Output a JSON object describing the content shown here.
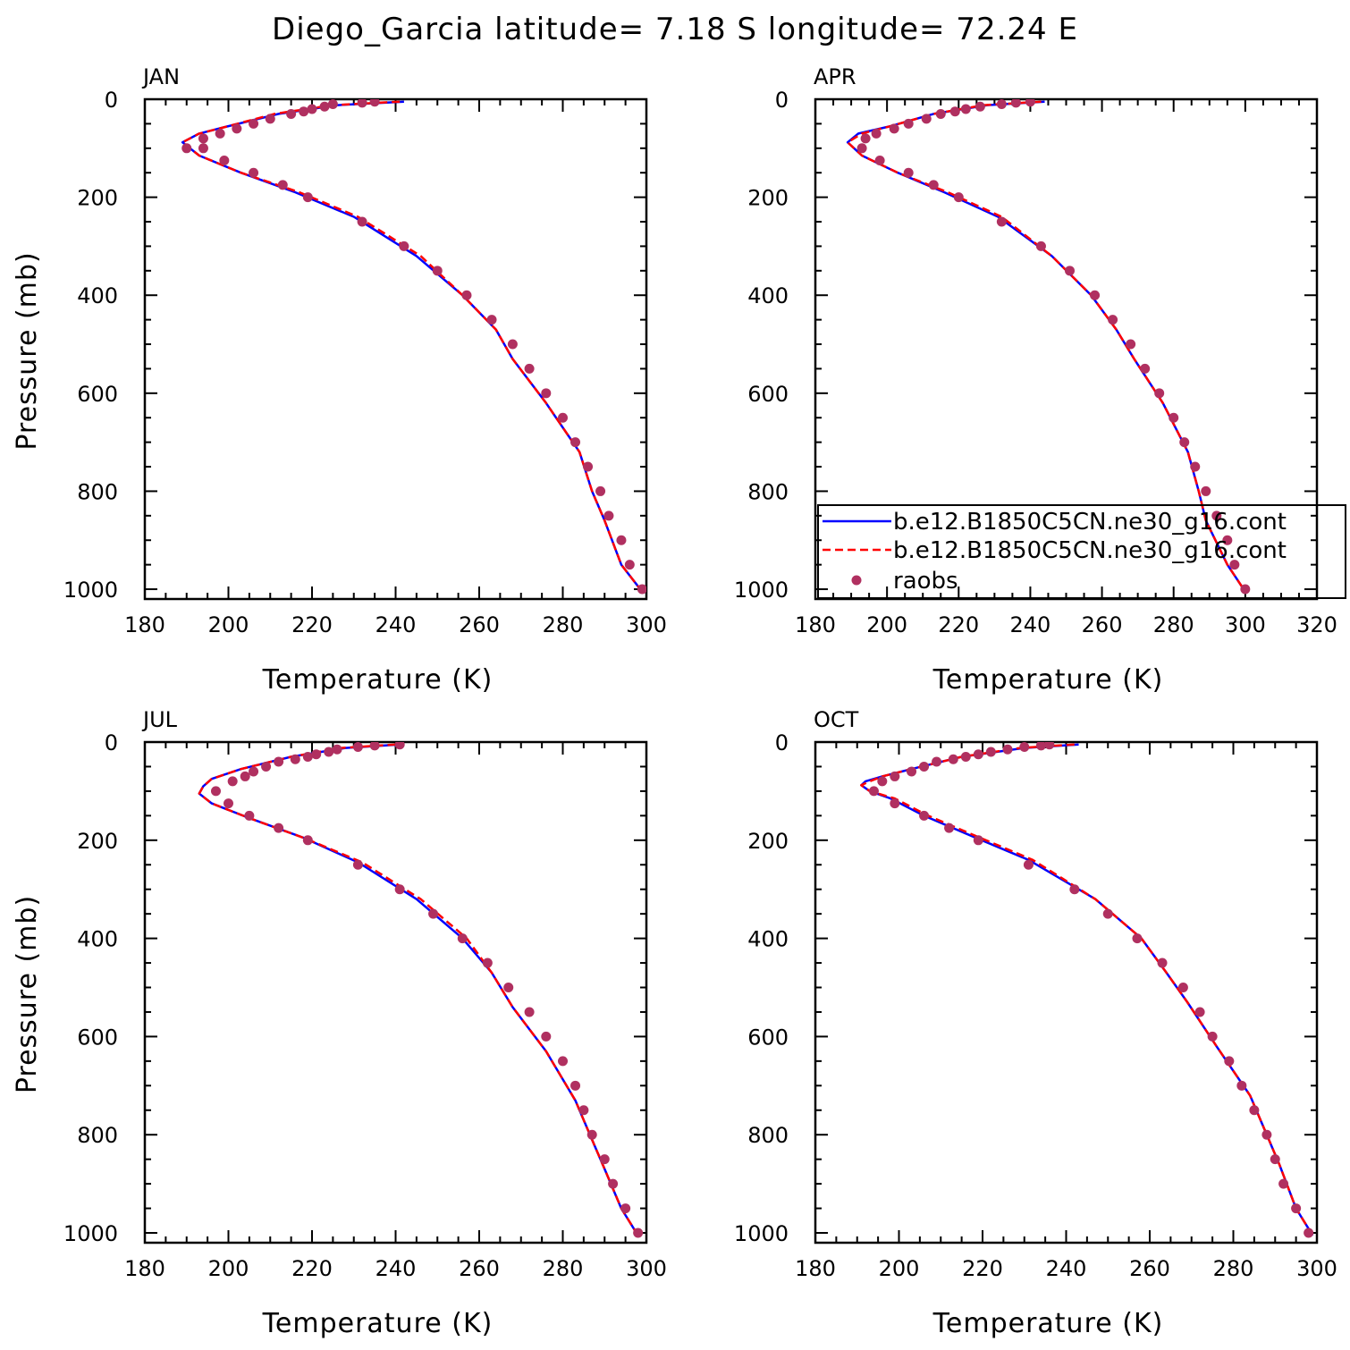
{
  "figure": {
    "title": "Diego_Garcia  latitude= 7.18 S longitude= 72.24 E"
  },
  "chart_data": [
    {
      "type": "line",
      "panel": "JAN",
      "title": "JAN",
      "xlabel": "Temperature (K)",
      "ylabel": "Pressure (mb)",
      "xlim": [
        180,
        300
      ],
      "ylim": [
        1020,
        0
      ],
      "xticks": [
        180,
        200,
        220,
        240,
        260,
        280,
        300
      ],
      "yticks": [
        0,
        200,
        400,
        600,
        800,
        1000
      ],
      "grid": false,
      "series": [
        {
          "name": "b.e12.B1850C5CN.ne30_g16.cont",
          "style": "solid",
          "color": "#0000ff",
          "x": [
            242,
            226,
            212,
            200,
            193,
            189,
            193,
            203,
            216,
            230,
            245,
            256,
            264,
            268,
            276,
            284,
            287,
            290,
            294,
            299
          ],
          "y": [
            5,
            12,
            30,
            55,
            70,
            88,
            115,
            150,
            190,
            240,
            320,
            400,
            470,
            530,
            620,
            720,
            800,
            860,
            950,
            1005
          ]
        },
        {
          "name": "b.e12.B1850C5CN.ne30_g16.cont",
          "style": "dashed",
          "color": "#ff0000",
          "x": [
            241,
            225,
            211,
            200,
            193,
            189,
            193,
            203,
            217,
            231,
            246,
            256,
            264,
            268,
            276,
            284,
            287,
            290,
            294,
            299
          ],
          "y": [
            5,
            12,
            30,
            55,
            70,
            88,
            115,
            150,
            190,
            240,
            320,
            400,
            470,
            530,
            620,
            720,
            800,
            860,
            950,
            1005
          ]
        },
        {
          "name": "raobs",
          "style": "markers",
          "color": "#b03060",
          "x": [
            235,
            232,
            225,
            223,
            220,
            218,
            215,
            210,
            206,
            202,
            198,
            194,
            190,
            194,
            199,
            206,
            213,
            219,
            232,
            242,
            250,
            257,
            263,
            268,
            272,
            276,
            280,
            283,
            286,
            289,
            291,
            294,
            296,
            299
          ],
          "y": [
            5,
            7,
            10,
            15,
            20,
            25,
            30,
            40,
            50,
            60,
            70,
            80,
            100,
            100,
            125,
            150,
            175,
            200,
            250,
            300,
            350,
            400,
            450,
            500,
            550,
            600,
            650,
            700,
            750,
            800,
            850,
            900,
            950,
            1000
          ]
        }
      ]
    },
    {
      "type": "line",
      "panel": "APR",
      "title": "APR",
      "xlabel": "Temperature (K)",
      "ylabel": "",
      "xlim": [
        180,
        320
      ],
      "ylim": [
        1020,
        0
      ],
      "xticks": [
        180,
        200,
        220,
        240,
        260,
        280,
        300,
        320
      ],
      "yticks": [
        0,
        200,
        400,
        600,
        800,
        1000
      ],
      "grid": false,
      "legend": {
        "placement": "bottom-right",
        "entries": [
          "b.e12.B1850C5CN.ne30_g16.cont",
          "b.e12.B1850C5CN.ne30_g16.cont",
          "raobs"
        ]
      },
      "series": [
        {
          "name": "b.e12.B1850C5CN.ne30_g16.cont",
          "style": "solid",
          "color": "#0000ff",
          "x": [
            244,
            228,
            213,
            201,
            192,
            189,
            193,
            203,
            216,
            231,
            246,
            257,
            264,
            269,
            277,
            284,
            287,
            289,
            295,
            300
          ],
          "y": [
            5,
            12,
            30,
            55,
            70,
            88,
            115,
            150,
            190,
            240,
            320,
            400,
            470,
            530,
            620,
            720,
            800,
            860,
            950,
            1005
          ]
        },
        {
          "name": "b.e12.B1850C5CN.ne30_g16.cont",
          "style": "dashed",
          "color": "#ff0000",
          "x": [
            243,
            227,
            213,
            201,
            193,
            189,
            193,
            203,
            217,
            232,
            246,
            257,
            264,
            269,
            277,
            284,
            287,
            289,
            295,
            300
          ],
          "y": [
            5,
            12,
            30,
            55,
            70,
            88,
            115,
            150,
            190,
            240,
            320,
            400,
            470,
            530,
            620,
            720,
            800,
            860,
            950,
            1005
          ]
        },
        {
          "name": "raobs",
          "style": "markers",
          "color": "#b03060",
          "x": [
            240,
            236,
            232,
            226,
            222,
            219,
            215,
            211,
            206,
            202,
            197,
            194,
            193,
            198,
            206,
            213,
            220,
            232,
            243,
            251,
            258,
            263,
            268,
            272,
            276,
            280,
            283,
            286,
            289,
            292,
            295,
            297,
            300
          ],
          "y": [
            5,
            7,
            10,
            15,
            20,
            25,
            30,
            40,
            50,
            60,
            70,
            80,
            100,
            125,
            150,
            175,
            200,
            250,
            300,
            350,
            400,
            450,
            500,
            550,
            600,
            650,
            700,
            750,
            800,
            850,
            900,
            950,
            1000
          ]
        }
      ]
    },
    {
      "type": "line",
      "panel": "JUL",
      "title": "JUL",
      "xlabel": "Temperature (K)",
      "ylabel": "Pressure (mb)",
      "xlim": [
        180,
        300
      ],
      "ylim": [
        1020,
        0
      ],
      "xticks": [
        180,
        200,
        220,
        240,
        260,
        280,
        300
      ],
      "yticks": [
        0,
        200,
        400,
        600,
        800,
        1000
      ],
      "grid": false,
      "series": [
        {
          "name": "b.e12.B1850C5CN.ne30_g16.cont",
          "style": "solid",
          "color": "#0000ff",
          "x": [
            241,
            228,
            215,
            203,
            196,
            194,
            193,
            196,
            205,
            218,
            231,
            245,
            256,
            263,
            268,
            276,
            283,
            287,
            290,
            294,
            298
          ],
          "y": [
            5,
            12,
            30,
            55,
            75,
            90,
            105,
            125,
            155,
            195,
            245,
            320,
            400,
            470,
            540,
            630,
            730,
            810,
            870,
            950,
            1005
          ]
        },
        {
          "name": "b.e12.B1850C5CN.ne30_g16.cont",
          "style": "dashed",
          "color": "#ff0000",
          "x": [
            240,
            227,
            215,
            203,
            196,
            194,
            193,
            196,
            205,
            218,
            232,
            246,
            257,
            263,
            268,
            276,
            283,
            287,
            290,
            294,
            298
          ],
          "y": [
            5,
            12,
            30,
            55,
            75,
            90,
            105,
            125,
            155,
            195,
            245,
            320,
            400,
            470,
            540,
            630,
            730,
            810,
            870,
            950,
            1005
          ]
        },
        {
          "name": "raobs",
          "style": "markers",
          "color": "#b03060",
          "x": [
            241,
            235,
            231,
            226,
            224,
            221,
            219,
            216,
            212,
            209,
            206,
            204,
            201,
            197,
            200,
            205,
            212,
            219,
            231,
            241,
            249,
            256,
            262,
            267,
            272,
            276,
            280,
            283,
            285,
            287,
            290,
            292,
            295,
            298
          ],
          "y": [
            5,
            7,
            10,
            15,
            20,
            25,
            30,
            35,
            40,
            50,
            60,
            70,
            80,
            100,
            125,
            150,
            175,
            200,
            250,
            300,
            350,
            400,
            450,
            500,
            550,
            600,
            650,
            700,
            750,
            800,
            850,
            900,
            950,
            1000
          ]
        }
      ]
    },
    {
      "type": "line",
      "panel": "OCT",
      "title": "OCT",
      "xlabel": "Temperature (K)",
      "ylabel": "",
      "xlim": [
        180,
        300
      ],
      "ylim": [
        1020,
        0
      ],
      "xticks": [
        180,
        200,
        220,
        240,
        260,
        280,
        300
      ],
      "yticks": [
        0,
        200,
        400,
        600,
        800,
        1000
      ],
      "grid": false,
      "series": [
        {
          "name": "b.e12.B1850C5CN.ne30_g16.cont",
          "style": "solid",
          "color": "#0000ff",
          "x": [
            243,
            230,
            215,
            203,
            196,
            192,
            191,
            193,
            198,
            206,
            217,
            231,
            247,
            258,
            264,
            269,
            276,
            284,
            288,
            291,
            295,
            299
          ],
          "y": [
            5,
            12,
            30,
            55,
            70,
            80,
            88,
            100,
            115,
            150,
            190,
            240,
            320,
            400,
            470,
            530,
            620,
            720,
            800,
            860,
            950,
            1005
          ]
        },
        {
          "name": "b.e12.B1850C5CN.ne30_g16.cont",
          "style": "dashed",
          "color": "#ff0000",
          "x": [
            242,
            229,
            215,
            203,
            196,
            193,
            191,
            193,
            199,
            207,
            218,
            232,
            247,
            258,
            264,
            269,
            276,
            284,
            288,
            291,
            295,
            299
          ],
          "y": [
            5,
            12,
            30,
            55,
            70,
            80,
            88,
            100,
            115,
            150,
            190,
            240,
            320,
            400,
            470,
            530,
            620,
            720,
            800,
            860,
            950,
            1005
          ]
        },
        {
          "name": "raobs",
          "style": "markers",
          "color": "#b03060",
          "x": [
            236,
            234,
            230,
            226,
            222,
            219,
            216,
            213,
            209,
            206,
            203,
            199,
            196,
            194,
            199,
            206,
            212,
            219,
            231,
            242,
            250,
            257,
            263,
            268,
            272,
            275,
            279,
            282,
            285,
            288,
            290,
            292,
            295,
            298
          ],
          "y": [
            5,
            7,
            10,
            15,
            20,
            25,
            30,
            35,
            40,
            50,
            60,
            70,
            80,
            100,
            125,
            150,
            175,
            200,
            250,
            300,
            350,
            400,
            450,
            500,
            550,
            600,
            650,
            700,
            750,
            800,
            850,
            900,
            950,
            1000
          ]
        }
      ]
    }
  ]
}
